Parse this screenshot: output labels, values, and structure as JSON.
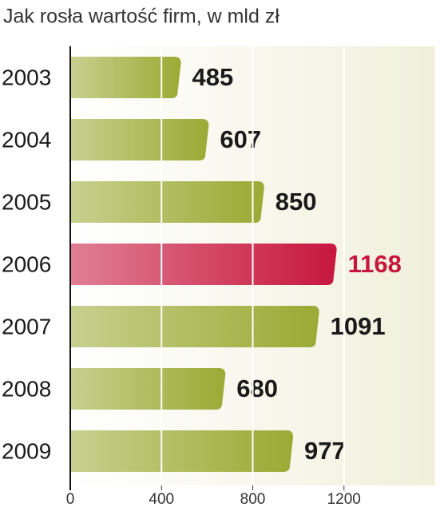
{
  "chart_data": {
    "type": "bar",
    "orientation": "horizontal",
    "title": "Jak rosła wartość firm, w mld zł",
    "categories": [
      "2003",
      "2004",
      "2005",
      "2006",
      "2007",
      "2008",
      "2009"
    ],
    "values": [
      485,
      607,
      850,
      1168,
      1091,
      680,
      977
    ],
    "colors": [
      "#9aab35",
      "#9aab35",
      "#9aab35",
      "#c8173e",
      "#9aab35",
      "#9aab35",
      "#9aab35"
    ],
    "value_label_colors": [
      "#1a1a1a",
      "#1a1a1a",
      "#1a1a1a",
      "#c8173e",
      "#1a1a1a",
      "#1a1a1a",
      "#1a1a1a"
    ],
    "xlim": [
      0,
      1600
    ],
    "xticks": [
      0,
      400,
      800,
      1200
    ],
    "grid": true
  }
}
